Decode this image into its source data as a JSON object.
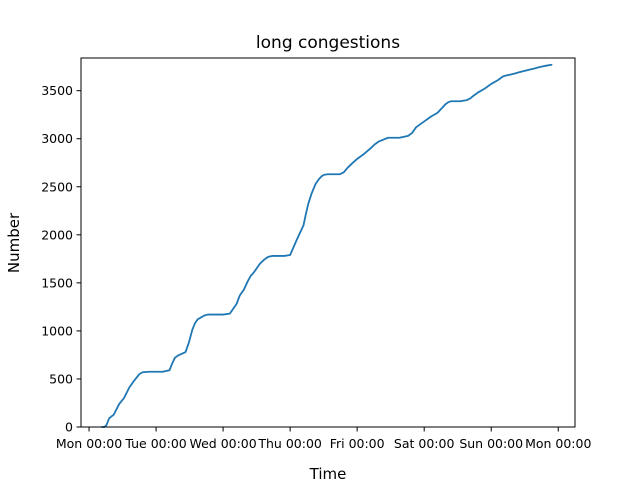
{
  "chart_data": {
    "type": "line",
    "title": "long congestions",
    "xlabel": "Time",
    "ylabel": "Number",
    "x_unit": "days from Mon 00:00",
    "xlim": [
      -0.12,
      7.25
    ],
    "ylim": [
      0,
      3840
    ],
    "xticks": [
      {
        "value": 0,
        "label": "Mon 00:00"
      },
      {
        "value": 1,
        "label": "Tue 00:00"
      },
      {
        "value": 2,
        "label": "Wed 00:00"
      },
      {
        "value": 3,
        "label": "Thu 00:00"
      },
      {
        "value": 4,
        "label": "Fri 00:00"
      },
      {
        "value": 5,
        "label": "Sat 00:00"
      },
      {
        "value": 6,
        "label": "Sun 00:00"
      },
      {
        "value": 7,
        "label": "Mon 00:00"
      }
    ],
    "yticks": [
      {
        "value": 0,
        "label": "0"
      },
      {
        "value": 500,
        "label": "500"
      },
      {
        "value": 1000,
        "label": "1000"
      },
      {
        "value": 1500,
        "label": "1500"
      },
      {
        "value": 2000,
        "label": "2000"
      },
      {
        "value": 2500,
        "label": "2500"
      },
      {
        "value": 3000,
        "label": "3000"
      },
      {
        "value": 3500,
        "label": "3500"
      }
    ],
    "grid": false,
    "color": "#1f77b4",
    "series": [
      {
        "x": [
          0.19,
          0.23,
          0.26,
          0.3,
          0.37,
          0.45,
          0.52,
          0.6,
          0.67,
          0.75,
          0.8,
          0.9,
          1.0,
          1.1,
          1.2,
          1.24,
          1.28,
          1.33,
          1.38,
          1.44,
          1.49,
          1.54,
          1.58,
          1.62,
          1.67,
          1.72,
          1.77,
          1.83,
          1.88,
          1.93,
          2.0,
          2.1,
          2.2,
          2.25,
          2.31,
          2.37,
          2.41,
          2.46,
          2.51,
          2.55,
          2.61,
          2.67,
          2.73,
          2.79,
          2.85,
          2.91,
          3.0,
          3.1,
          3.2,
          3.23,
          3.27,
          3.32,
          3.38,
          3.43,
          3.47,
          3.51,
          3.56,
          3.6,
          3.65,
          3.69,
          3.74,
          3.8,
          3.86,
          3.92,
          4.0,
          4.1,
          4.2,
          4.26,
          4.32,
          4.39,
          4.46,
          4.52,
          4.58,
          4.63,
          4.7,
          4.76,
          4.82,
          4.88,
          5.0,
          5.1,
          5.2,
          5.24,
          5.28,
          5.32,
          5.36,
          5.4,
          5.45,
          5.49,
          5.54,
          5.58,
          5.63,
          5.69,
          5.74,
          5.8,
          5.9,
          6.0,
          6.1,
          6.18,
          6.24,
          6.3,
          6.36,
          6.41,
          6.46,
          6.52,
          6.58,
          6.64,
          6.69,
          6.75,
          6.82,
          6.9
        ],
        "y": [
          0,
          0,
          20,
          90,
          130,
          240,
          300,
          410,
          480,
          550,
          570,
          575,
          575,
          575,
          590,
          660,
          720,
          745,
          760,
          780,
          880,
          1010,
          1080,
          1120,
          1140,
          1160,
          1170,
          1170,
          1170,
          1170,
          1170,
          1180,
          1280,
          1370,
          1430,
          1520,
          1570,
          1610,
          1660,
          1700,
          1740,
          1770,
          1780,
          1780,
          1780,
          1780,
          1790,
          1950,
          2100,
          2200,
          2320,
          2430,
          2530,
          2580,
          2610,
          2625,
          2630,
          2630,
          2630,
          2630,
          2630,
          2650,
          2700,
          2740,
          2790,
          2840,
          2900,
          2940,
          2970,
          2990,
          3010,
          3010,
          3010,
          3010,
          3020,
          3030,
          3060,
          3120,
          3180,
          3230,
          3270,
          3300,
          3330,
          3360,
          3380,
          3390,
          3390,
          3390,
          3390,
          3395,
          3400,
          3420,
          3450,
          3480,
          3520,
          3570,
          3610,
          3650,
          3660,
          3670,
          3680,
          3690,
          3700,
          3710,
          3720,
          3730,
          3740,
          3750,
          3760,
          3770
        ]
      }
    ]
  }
}
